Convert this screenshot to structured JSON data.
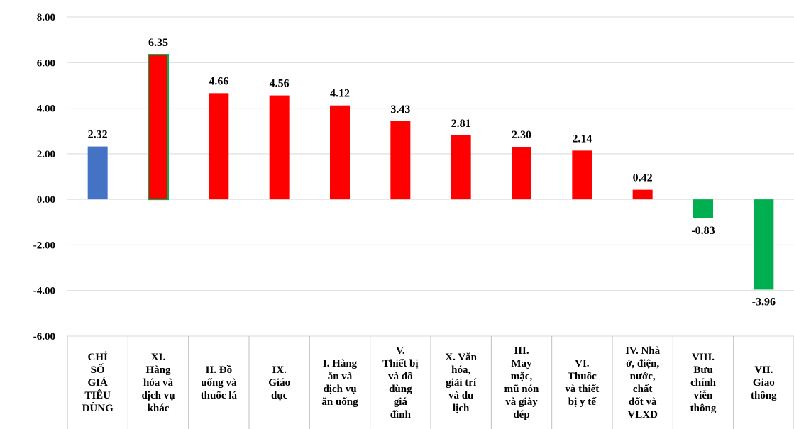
{
  "chart_data": {
    "type": "bar",
    "title": "",
    "xlabel": "",
    "ylabel": "",
    "ylim": [
      -6,
      8
    ],
    "yticks": [
      "8.00",
      "6.00",
      "4.00",
      "2.00",
      "0.00",
      "-2.00",
      "-4.00",
      "-6.00"
    ],
    "grid": true,
    "legend": "none",
    "categories": [
      [
        "CHỈ",
        "SỐ",
        "GIÁ",
        "TIÊU",
        "DÙNG"
      ],
      [
        "XI.",
        "Hàng",
        "hóa và",
        "dịch vụ",
        "khác"
      ],
      [
        "II. Đồ",
        "uống và",
        "thuốc lá"
      ],
      [
        "IX.",
        "Giáo",
        "dục"
      ],
      [
        "I. Hàng",
        "ăn và",
        "dịch vụ",
        "ăn uống"
      ],
      [
        "V.",
        "Thiết bị",
        "và đồ",
        "dùng",
        "giá",
        "đình"
      ],
      [
        "X. Văn",
        "hóa,",
        "giải trí",
        "và du",
        "lịch"
      ],
      [
        "III.",
        "May",
        "mặc,",
        "mũ nón",
        "và giày",
        "dép"
      ],
      [
        "VI.",
        "Thuốc",
        "và thiết",
        "bị y tế"
      ],
      [
        "IV. Nhà",
        "ở, điện,",
        "nước,",
        "chất",
        "đốt và",
        "VLXD"
      ],
      [
        "VIII.",
        "Bưu",
        "chính",
        "viễn",
        "thông"
      ],
      [
        "VII.",
        "Giao",
        "thông"
      ]
    ],
    "values": [
      2.32,
      6.35,
      4.66,
      4.56,
      4.12,
      3.43,
      2.81,
      2.3,
      2.14,
      0.42,
      -0.83,
      -3.96
    ],
    "labels": [
      "2.32",
      "6.35",
      "4.66",
      "4.56",
      "4.12",
      "3.43",
      "2.81",
      "2.30",
      "2.14",
      "0.42",
      "-0.83",
      "-3.96"
    ],
    "colors": [
      "#4472c4",
      "#ff0000",
      "#ff0000",
      "#ff0000",
      "#ff0000",
      "#ff0000",
      "#ff0000",
      "#ff0000",
      "#ff0000",
      "#ff0000",
      "#00b050",
      "#00b050"
    ],
    "highlight_border": "#00b050"
  }
}
